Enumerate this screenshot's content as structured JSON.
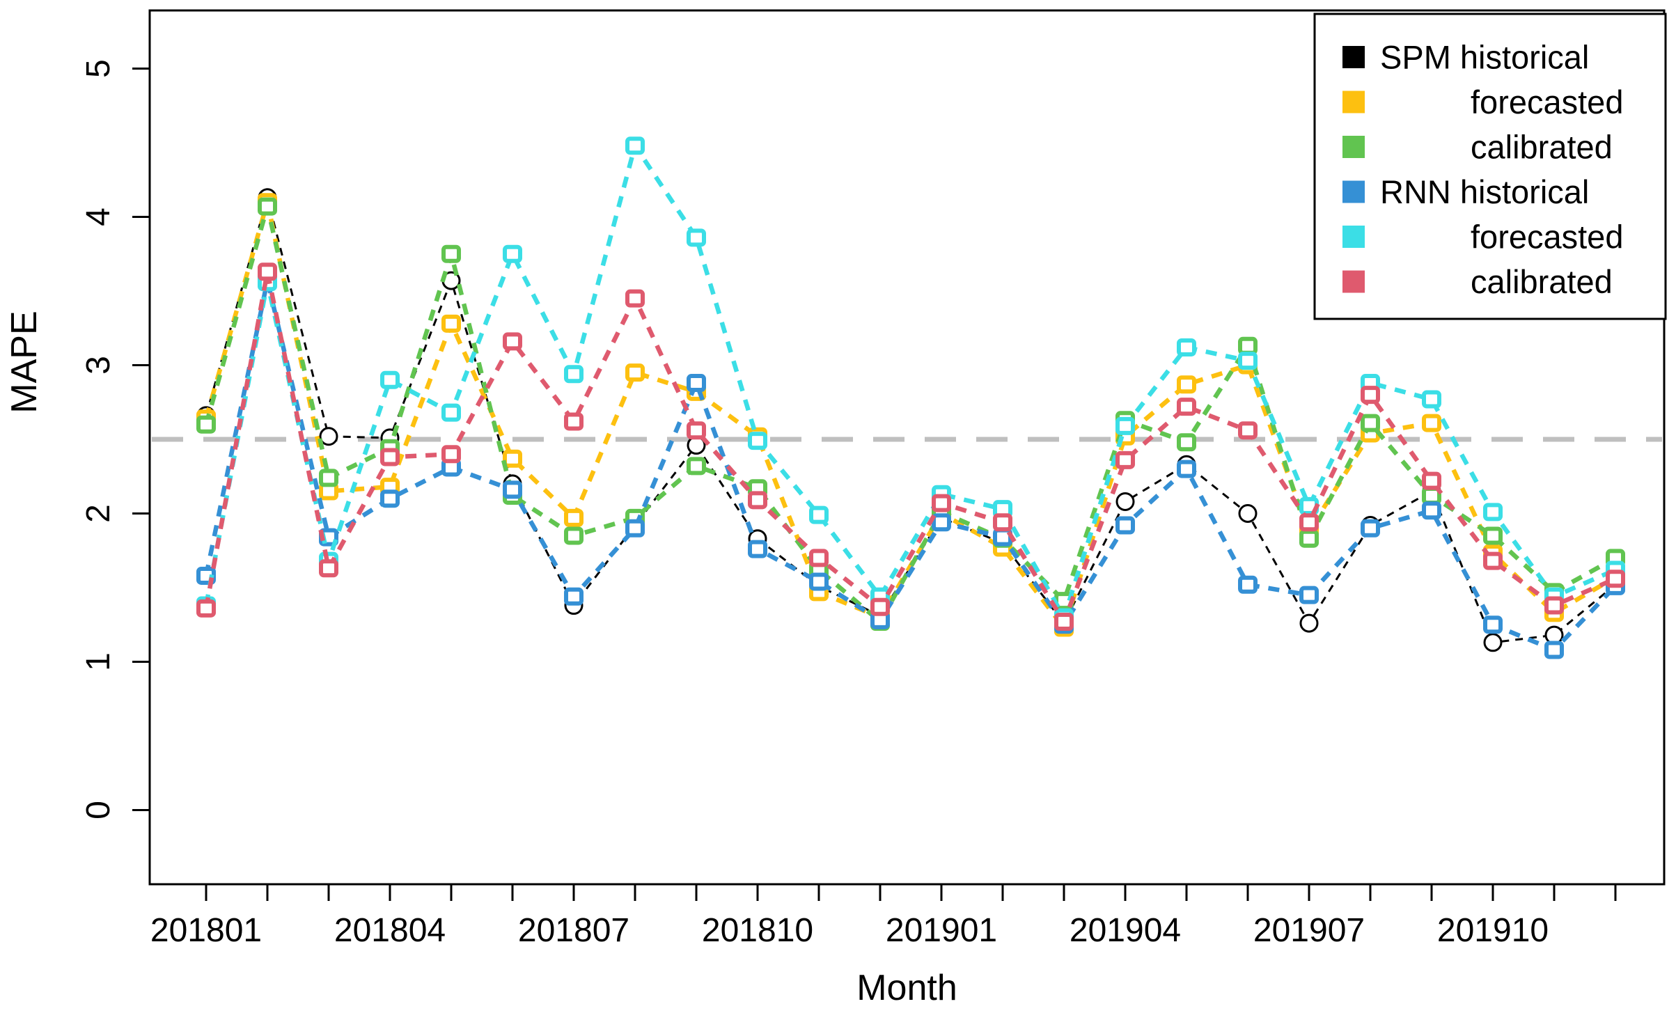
{
  "figure": {
    "background": "#ffffff"
  },
  "chart_data": {
    "type": "line",
    "title": "",
    "xlabel": "Month",
    "ylabel": "MAPE",
    "ylim": [
      0,
      5
    ],
    "grid": false,
    "ytick_labels": [
      "0",
      "1",
      "2",
      "3",
      "4",
      "5"
    ],
    "ytick_values": [
      0,
      1,
      2,
      3,
      4,
      5
    ],
    "x_categories": [
      "201801",
      "201802",
      "201803",
      "201804",
      "201805",
      "201806",
      "201807",
      "201808",
      "201809",
      "201810",
      "201811",
      "201812",
      "201901",
      "201902",
      "201903",
      "201904",
      "201905",
      "201906",
      "201907",
      "201908",
      "201909",
      "201910",
      "201911",
      "201912"
    ],
    "x_major_label_every": 3,
    "reference_line": {
      "value": 2.5,
      "color": "#BFBFBF",
      "style": "dashed"
    },
    "colors": {
      "black": "#000000",
      "gold": "#FDC010",
      "green": "#61C450",
      "blue": "#3590D5",
      "cyan": "#3BDEE6",
      "red": "#DF5A6E"
    },
    "series": [
      {
        "name": "SPM historical",
        "color_key": "black",
        "marker": "circle",
        "values": [
          2.66,
          4.13,
          2.52,
          2.51,
          3.57,
          2.2,
          1.38,
          1.92,
          2.46,
          1.83,
          1.51,
          1.31,
          1.97,
          1.8,
          1.26,
          2.08,
          2.33,
          2.0,
          1.26,
          1.92,
          2.15,
          1.13,
          1.18,
          1.52
        ]
      },
      {
        "name": "SPM forecasted",
        "color_key": "gold",
        "marker": "square",
        "values": [
          2.64,
          4.1,
          2.15,
          2.18,
          3.28,
          2.37,
          1.97,
          2.95,
          2.82,
          2.52,
          1.47,
          1.3,
          2.0,
          1.77,
          1.23,
          2.52,
          2.87,
          3.0,
          1.88,
          2.54,
          2.61,
          1.73,
          1.33,
          1.57
        ]
      },
      {
        "name": "SPM calibrated",
        "color_key": "green",
        "marker": "square",
        "values": [
          2.6,
          4.07,
          2.24,
          2.44,
          3.75,
          2.12,
          1.85,
          1.97,
          2.32,
          2.17,
          1.62,
          1.27,
          2.01,
          1.83,
          1.41,
          2.63,
          2.48,
          3.13,
          1.83,
          2.61,
          2.12,
          1.85,
          1.47,
          1.7
        ]
      },
      {
        "name": "RNN historical",
        "color_key": "blue",
        "marker": "square",
        "values": [
          1.58,
          3.57,
          1.84,
          2.1,
          2.31,
          2.16,
          1.44,
          1.9,
          2.88,
          1.76,
          1.54,
          1.28,
          1.94,
          1.84,
          1.25,
          1.92,
          2.3,
          1.52,
          1.45,
          1.9,
          2.02,
          1.25,
          1.08,
          1.51
        ]
      },
      {
        "name": "RNN forecasted",
        "color_key": "cyan",
        "marker": "square",
        "values": [
          1.38,
          3.56,
          1.68,
          2.9,
          2.68,
          3.75,
          2.94,
          4.48,
          3.86,
          2.49,
          1.99,
          1.44,
          2.13,
          2.03,
          1.3,
          2.59,
          3.12,
          3.03,
          2.05,
          2.88,
          2.77,
          2.01,
          1.44,
          1.62
        ]
      },
      {
        "name": "RNN calibrated",
        "color_key": "red",
        "marker": "square",
        "values": [
          1.36,
          3.63,
          1.63,
          2.38,
          2.4,
          3.16,
          2.62,
          3.45,
          2.56,
          2.09,
          1.7,
          1.37,
          2.07,
          1.94,
          1.27,
          2.36,
          2.72,
          2.56,
          1.94,
          2.8,
          2.22,
          1.68,
          1.38,
          1.56
        ]
      }
    ],
    "legend": {
      "position": "top-right",
      "entries": [
        {
          "label": "SPM historical",
          "color_key": "black",
          "indent": 0
        },
        {
          "label": "forecasted",
          "color_key": "gold",
          "indent": 1
        },
        {
          "label": "calibrated",
          "color_key": "green",
          "indent": 1
        },
        {
          "label": "RNN historical",
          "color_key": "blue",
          "indent": 0
        },
        {
          "label": "forecasted",
          "color_key": "cyan",
          "indent": 1
        },
        {
          "label": "calibrated",
          "color_key": "red",
          "indent": 1
        }
      ]
    }
  }
}
